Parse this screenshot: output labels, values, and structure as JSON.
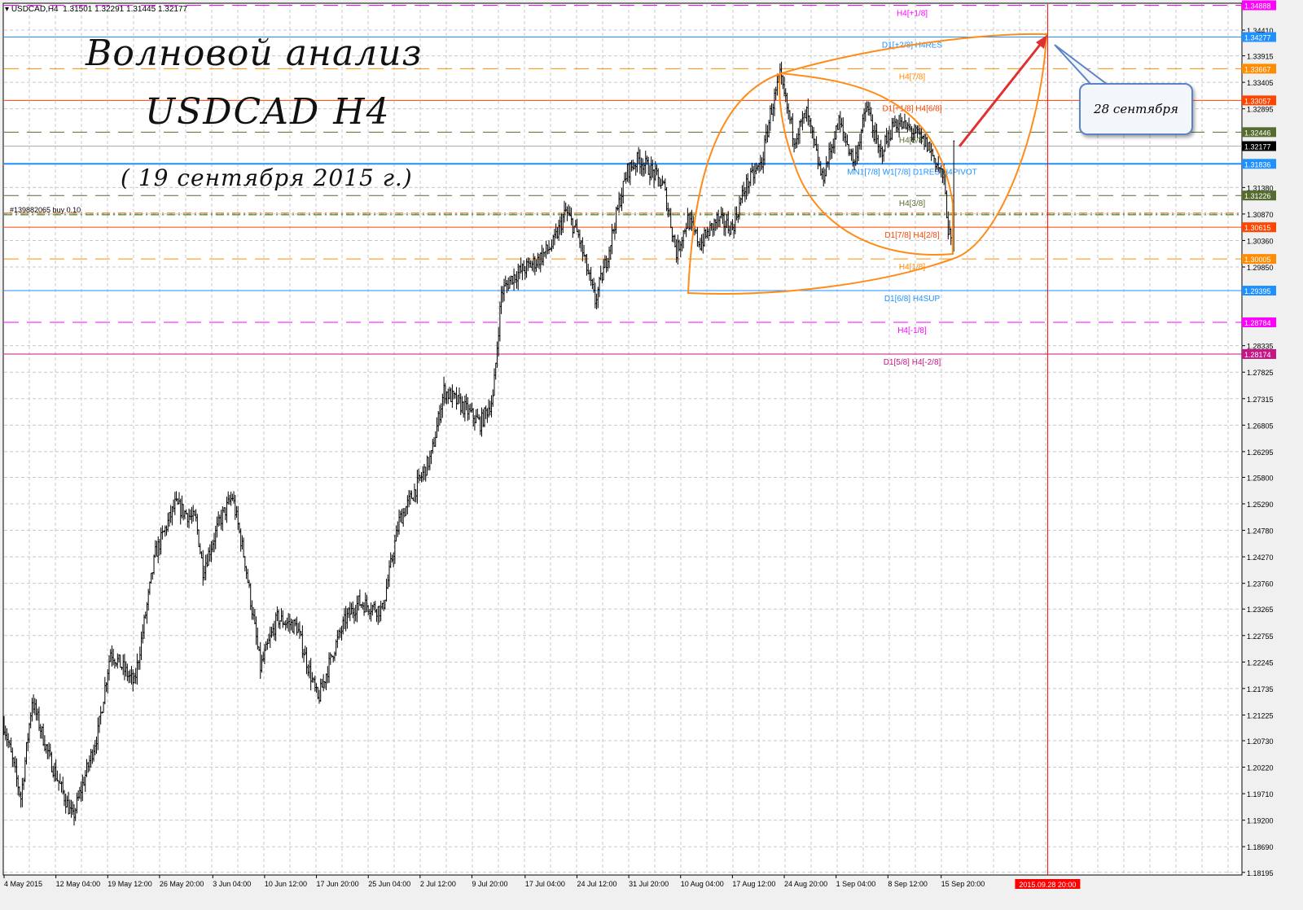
{
  "header": {
    "symbol": "USDCAD,H4",
    "ohlc": "1.31501 1.32291 1.31445 1.32177"
  },
  "annotations": {
    "title_line1": "Волновой анализ",
    "title_line2": "USDCAD H4",
    "date_line": "( 19 сентября 2015 г.)",
    "callout": "28 сентября",
    "order_label": "#139882065 buy 0.10"
  },
  "chart_data": {
    "type": "ohlc",
    "symbol": "USDCAD",
    "timeframe": "H4",
    "ylim": [
      1.18195,
      1.35
    ],
    "price_axis_ticks": [
      "1.34410",
      "1.33915",
      "1.33405",
      "1.32895",
      "1.31380",
      "1.30870",
      "1.30360",
      "1.29850",
      "1.28335",
      "1.27825",
      "1.27315",
      "1.26805",
      "1.26295",
      "1.25800",
      "1.25290",
      "1.24780",
      "1.24270",
      "1.23760",
      "1.23265",
      "1.22755",
      "1.22245",
      "1.21735",
      "1.21225",
      "1.20730",
      "1.20220",
      "1.19710",
      "1.19200",
      "1.18690",
      "1.18195"
    ],
    "time_axis_ticks": [
      {
        "bar": 0,
        "label": "4 May 2015"
      },
      {
        "bar": 37,
        "label": "12 May 04:00"
      },
      {
        "bar": 74,
        "label": "19 May 12:00"
      },
      {
        "bar": 111,
        "label": "26 May 20:00"
      },
      {
        "bar": 149,
        "label": "3 Jun 04:00"
      },
      {
        "bar": 186,
        "label": "10 Jun 12:00"
      },
      {
        "bar": 223,
        "label": "17 Jun 20:00"
      },
      {
        "bar": 260,
        "label": "25 Jun 04:00"
      },
      {
        "bar": 297,
        "label": "2 Jul 12:00"
      },
      {
        "bar": 334,
        "label": "9 Jul 20:00"
      },
      {
        "bar": 372,
        "label": "17 Jul 04:00"
      },
      {
        "bar": 409,
        "label": "24 Jul 12:00"
      },
      {
        "bar": 446,
        "label": "31 Jul 20:00"
      },
      {
        "bar": 483,
        "label": "10 Aug 04:00"
      },
      {
        "bar": 520,
        "label": "17 Aug 12:00"
      },
      {
        "bar": 557,
        "label": "24 Aug 20:00"
      },
      {
        "bar": 594,
        "label": "1 Sep 04:00"
      },
      {
        "bar": 631,
        "label": "8 Sep 12:00"
      },
      {
        "bar": 669,
        "label": "15 Sep 20:00"
      }
    ],
    "price_path": [
      [
        0,
        1.2104
      ],
      [
        12,
        1.1963
      ],
      [
        20,
        1.2151
      ],
      [
        32,
        1.2042
      ],
      [
        49,
        1.1924
      ],
      [
        67,
        1.2089
      ],
      [
        76,
        1.2245
      ],
      [
        93,
        1.2183
      ],
      [
        108,
        1.2433
      ],
      [
        122,
        1.2527
      ],
      [
        137,
        1.2496
      ],
      [
        142,
        1.2402
      ],
      [
        154,
        1.2496
      ],
      [
        163,
        1.2543
      ],
      [
        172,
        1.2418
      ],
      [
        183,
        1.2214
      ],
      [
        195,
        1.2308
      ],
      [
        209,
        1.2292
      ],
      [
        224,
        1.2151
      ],
      [
        235,
        1.2245
      ],
      [
        244,
        1.2308
      ],
      [
        253,
        1.2339
      ],
      [
        270,
        1.2324
      ],
      [
        282,
        1.2496
      ],
      [
        294,
        1.2559
      ],
      [
        305,
        1.2621
      ],
      [
        314,
        1.2747
      ],
      [
        328,
        1.2715
      ],
      [
        340,
        1.2684
      ],
      [
        349,
        1.2731
      ],
      [
        355,
        1.2935
      ],
      [
        363,
        1.2966
      ],
      [
        381,
        1.2998
      ],
      [
        392,
        1.3029
      ],
      [
        401,
        1.3092
      ],
      [
        410,
        1.3045
      ],
      [
        422,
        1.2919
      ],
      [
        430,
        1.2998
      ],
      [
        439,
        1.3107
      ],
      [
        445,
        1.317
      ],
      [
        453,
        1.3193
      ],
      [
        462,
        1.317
      ],
      [
        471,
        1.3139
      ],
      [
        480,
        1.3013
      ],
      [
        488,
        1.3076
      ],
      [
        497,
        1.3029
      ],
      [
        509,
        1.3076
      ],
      [
        520,
        1.306
      ],
      [
        529,
        1.3139
      ],
      [
        541,
        1.3186
      ],
      [
        547,
        1.328
      ],
      [
        554,
        1.335
      ],
      [
        564,
        1.3233
      ],
      [
        573,
        1.328
      ],
      [
        584,
        1.3154
      ],
      [
        596,
        1.3264
      ],
      [
        607,
        1.3186
      ],
      [
        616,
        1.3295
      ],
      [
        625,
        1.3201
      ],
      [
        636,
        1.3264
      ],
      [
        648,
        1.3248
      ],
      [
        660,
        1.3217
      ],
      [
        671,
        1.3154
      ],
      [
        674,
        1.306
      ],
      [
        677,
        1.3013
      ],
      [
        678,
        1.32177
      ]
    ],
    "current_price": {
      "value": "1.32177",
      "color": "#000000"
    },
    "levels": [
      {
        "price": "1.34888",
        "label": "H4[+1/8]",
        "color": "#ff00ff",
        "style": "dashed"
      },
      {
        "price": "1.34277",
        "label": "D1[+2/8] H4RES",
        "color": "#1e90ff",
        "style": "solid"
      },
      {
        "price": "1.33667",
        "label": "H4[7/8]",
        "color": "#ff8c00",
        "style": "dashed"
      },
      {
        "price": "1.33057",
        "label": "D1[+1/8] H4[6/8]",
        "color": "#ff4500",
        "style": "solid"
      },
      {
        "price": "1.32446",
        "label": "H4[5/8]",
        "color": "#556b2f",
        "style": "dashed"
      },
      {
        "price": "1.31836",
        "label": "MN1[7/8] W1[7/8] D1RES H4PIVOT",
        "color": "#1e90ff",
        "style": "solid"
      },
      {
        "price": "1.31226",
        "label": "H4[3/8]",
        "color": "#556b2f",
        "style": "dashed"
      },
      {
        "price": "1.30615",
        "label": "D1[7/8] H4[2/8]",
        "color": "#ff4500",
        "style": "solid"
      },
      {
        "price": "1.30005",
        "label": "H4[1/8]",
        "color": "#ff8c00",
        "style": "dashed"
      },
      {
        "price": "1.29395",
        "label": "D1[6/8] H4SUP",
        "color": "#1e90ff",
        "style": "solid"
      },
      {
        "price": "1.28784",
        "label": "H4[-1/8]",
        "color": "#ff00ff",
        "style": "dashed"
      },
      {
        "price": "1.28174",
        "label": "D1[5/8] H4[-2/8]",
        "color": "#c71585",
        "style": "solid"
      }
    ],
    "order_line": {
      "price": 1.3087,
      "colors": [
        "#ff4500",
        "#008000"
      ]
    },
    "target_marker": {
      "bar": 745,
      "label": "2015.09.28 20:00",
      "color": "#ff0000"
    },
    "drawing_color": "#ff8c1a"
  }
}
